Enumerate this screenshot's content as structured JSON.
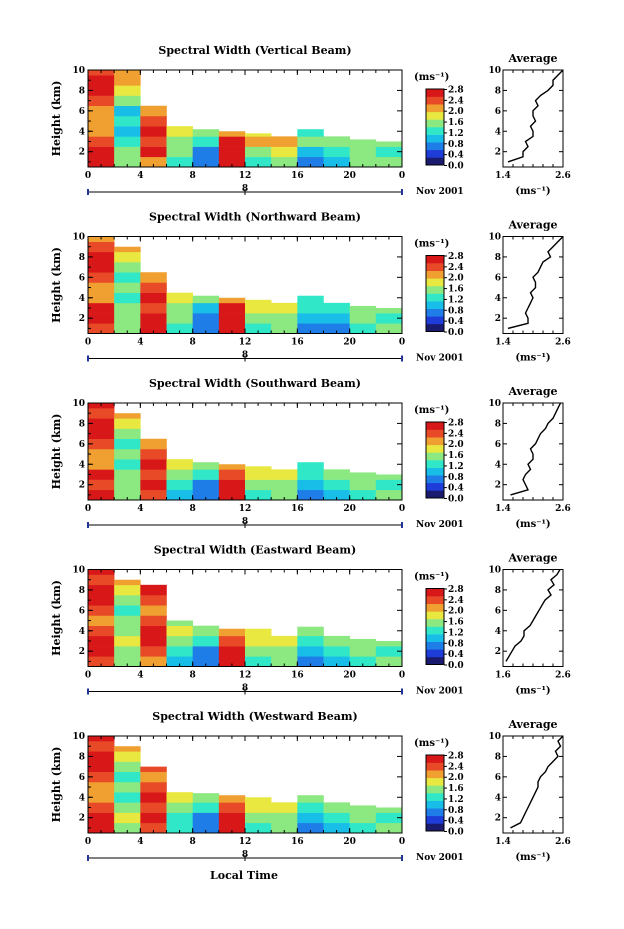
{
  "figure": {
    "xlabel": "Local Time",
    "xticks": [
      "0",
      "4",
      "8",
      "12",
      "16",
      "20",
      "0"
    ],
    "date_label": "Nov 2001",
    "day_marker": "8",
    "ylabel": "Height (km)",
    "yticks": [
      "2",
      "4",
      "6",
      "8",
      "10"
    ],
    "colorbar_unit": "(ms⁻¹)",
    "colorbar_ticks": [
      "0.0",
      "0.4",
      "0.8",
      "1.2",
      "1.6",
      "2.0",
      "2.4",
      "2.8"
    ],
    "colorbar_colors": [
      "#1a1a6e",
      "#1e3dd8",
      "#1f7de8",
      "#18bde8",
      "#30e8c8",
      "#8ce880",
      "#e8e840",
      "#f0a030",
      "#e84a28",
      "#d81818"
    ],
    "average_title": "Average",
    "average_xlabel": "(ms⁻¹)"
  },
  "panels": [
    {
      "title": "Spectral Width (Vertical Beam)",
      "avg_xticks": [
        "1.4",
        "2.6"
      ]
    },
    {
      "title": "Spectral Width (Northward Beam)",
      "avg_xticks": [
        "1.4",
        "2.6"
      ]
    },
    {
      "title": "Spectral Width (Southward Beam)",
      "avg_xticks": [
        "1.4",
        "2.6"
      ]
    },
    {
      "title": "Spectral Width (Eastward Beam)",
      "avg_xticks": [
        "1.6",
        "2.6"
      ]
    },
    {
      "title": "Spectral Width (Westward Beam)",
      "avg_xticks": [
        "1.4",
        "2.6"
      ]
    }
  ],
  "chart_data": [
    {
      "type": "heatmap",
      "title": "Spectral Width (Vertical Beam)",
      "xlabel": "Local Time",
      "ylabel": "Height (km)",
      "xlim": [
        0,
        24
      ],
      "ylim": [
        0.5,
        10
      ],
      "zlim": [
        0.0,
        2.8
      ],
      "zlabel": "(ms⁻¹)",
      "columns_hours": [
        0,
        2,
        4,
        6,
        8,
        10,
        12,
        14,
        16,
        18,
        20,
        22
      ],
      "rows_km": [
        1,
        2,
        3,
        4,
        5,
        6,
        7,
        8,
        9,
        10
      ],
      "top_km": [
        10,
        10,
        7,
        5,
        4.2,
        4,
        3.8,
        3.8,
        4.2,
        3.6,
        3.2,
        3
      ],
      "z": [
        [
          2.6,
          1.6,
          2.2,
          1.2,
          0.8,
          2.6,
          1.2,
          1.6,
          0.8,
          1.0,
          1.4,
          1.6
        ],
        [
          2.6,
          1.4,
          2.6,
          1.4,
          0.6,
          2.6,
          1.6,
          1.8,
          1.0,
          1.2,
          1.4,
          1.2
        ],
        [
          2.4,
          1.2,
          2.4,
          1.6,
          1.2,
          2.6,
          2.0,
          2.0,
          1.4,
          1.4,
          1.6,
          1.4
        ],
        [
          2.2,
          1.0,
          2.6,
          1.8,
          1.6,
          2.2,
          1.8,
          0,
          1.2,
          0,
          0,
          0
        ],
        [
          2.0,
          1.2,
          2.4,
          0,
          0,
          0,
          0,
          0,
          0,
          0,
          0,
          0
        ],
        [
          2.2,
          1.0,
          2.0,
          0,
          0,
          0,
          0,
          0,
          0,
          0,
          0,
          0
        ],
        [
          2.4,
          1.4,
          0,
          0,
          0,
          0,
          0,
          0,
          0,
          0,
          0,
          0
        ],
        [
          2.6,
          1.8,
          0,
          0,
          0,
          0,
          0,
          0,
          0,
          0,
          0,
          0
        ],
        [
          2.6,
          2.0,
          0,
          0,
          0,
          0,
          0,
          0,
          0,
          0,
          0,
          0
        ],
        [
          2.4,
          2.0,
          0,
          0,
          0,
          0,
          0,
          0,
          0,
          0,
          0,
          0
        ]
      ],
      "average": {
        "title": "Average",
        "xlim": [
          1.4,
          2.6
        ],
        "ylim": [
          0.5,
          10
        ],
        "xlabel": "(ms⁻¹)",
        "height_km": [
          1,
          1.5,
          2,
          2.5,
          3,
          3.5,
          4,
          4.5,
          5,
          5.5,
          6,
          6.5,
          7,
          7.5,
          8,
          8.5,
          9,
          9.5,
          10
        ],
        "value": [
          1.5,
          1.8,
          1.8,
          1.9,
          1.85,
          2.0,
          2.0,
          1.95,
          2.05,
          2.0,
          2.0,
          2.1,
          2.05,
          2.15,
          2.3,
          2.4,
          2.4,
          2.5,
          2.6
        ]
      }
    },
    {
      "type": "heatmap",
      "title": "Spectral Width (Northward Beam)",
      "xlabel": "Local Time",
      "ylabel": "Height (km)",
      "xlim": [
        0,
        24
      ],
      "ylim": [
        0.5,
        10
      ],
      "zlim": [
        0.0,
        2.8
      ],
      "zlabel": "(ms⁻¹)",
      "columns_hours": [
        0,
        2,
        4,
        6,
        8,
        10,
        12,
        14,
        16,
        18,
        20,
        22
      ],
      "rows_km": [
        1,
        2,
        3,
        4,
        5,
        6,
        7,
        8,
        9,
        10
      ],
      "top_km": [
        10,
        9,
        6.5,
        4.8,
        4.2,
        4,
        3.8,
        3.8,
        4.2,
        3.6,
        3.2,
        3
      ],
      "z": [
        [
          2.4,
          1.4,
          2.6,
          1.2,
          0.6,
          2.6,
          1.2,
          1.4,
          0.8,
          0.8,
          1.2,
          1.4
        ],
        [
          2.6,
          1.6,
          2.6,
          1.4,
          0.6,
          2.6,
          1.4,
          1.6,
          1.0,
          1.0,
          1.4,
          1.2
        ],
        [
          2.6,
          1.4,
          2.4,
          1.6,
          1.0,
          2.6,
          1.8,
          1.8,
          1.2,
          1.2,
          1.6,
          1.4
        ],
        [
          2.0,
          1.2,
          2.6,
          1.8,
          1.6,
          2.2,
          1.8,
          0,
          1.2,
          0,
          0,
          0
        ],
        [
          2.2,
          1.4,
          2.4,
          0,
          0,
          0,
          0,
          0,
          0,
          0,
          0,
          0
        ],
        [
          2.4,
          1.2,
          2.2,
          0,
          0,
          0,
          0,
          0,
          0,
          0,
          0,
          0
        ],
        [
          2.6,
          1.6,
          0,
          0,
          0,
          0,
          0,
          0,
          0,
          0,
          0,
          0
        ],
        [
          2.6,
          1.8,
          0,
          0,
          0,
          0,
          0,
          0,
          0,
          0,
          0,
          0
        ],
        [
          2.4,
          2.0,
          0,
          0,
          0,
          0,
          0,
          0,
          0,
          0,
          0,
          0
        ],
        [
          2.2,
          1.8,
          0,
          0,
          0,
          0,
          0,
          0,
          0,
          0,
          0,
          0
        ]
      ],
      "average": {
        "title": "Average",
        "xlim": [
          1.4,
          2.6
        ],
        "ylim": [
          0.5,
          10
        ],
        "xlabel": "(ms⁻¹)",
        "height_km": [
          1,
          1.5,
          2,
          2.5,
          3,
          3.5,
          4,
          4.5,
          5,
          5.5,
          6,
          6.5,
          7,
          7.5,
          8,
          8.5,
          9,
          9.5,
          10
        ],
        "value": [
          1.5,
          1.9,
          1.9,
          1.85,
          1.9,
          1.95,
          2.0,
          1.95,
          2.05,
          2.05,
          2.0,
          2.1,
          2.15,
          2.2,
          2.35,
          2.3,
          2.4,
          2.5,
          2.6
        ]
      }
    },
    {
      "type": "heatmap",
      "title": "Spectral Width (Southward Beam)",
      "xlabel": "Local Time",
      "ylabel": "Height (km)",
      "xlim": [
        0,
        24
      ],
      "ylim": [
        0.5,
        10
      ],
      "zlim": [
        0.0,
        2.8
      ],
      "zlabel": "(ms⁻¹)",
      "columns_hours": [
        0,
        2,
        4,
        6,
        8,
        10,
        12,
        14,
        16,
        18,
        20,
        22
      ],
      "rows_km": [
        1,
        2,
        3,
        4,
        5,
        6,
        7,
        8,
        9,
        10
      ],
      "top_km": [
        10,
        9,
        6.5,
        4.8,
        4.2,
        4,
        3.8,
        3.8,
        4.2,
        3.6,
        3.2,
        3
      ],
      "z": [
        [
          2.6,
          1.4,
          2.4,
          1.0,
          0.6,
          2.6,
          1.2,
          1.4,
          0.8,
          1.0,
          1.2,
          1.4
        ],
        [
          2.4,
          1.6,
          2.6,
          1.2,
          0.8,
          2.6,
          1.4,
          1.6,
          1.0,
          1.2,
          1.4,
          1.2
        ],
        [
          2.6,
          1.4,
          2.4,
          1.6,
          1.2,
          2.4,
          1.8,
          1.8,
          1.2,
          1.4,
          1.6,
          1.4
        ],
        [
          2.2,
          1.2,
          2.6,
          1.8,
          1.6,
          2.2,
          1.8,
          0,
          1.2,
          0,
          0,
          0
        ],
        [
          2.0,
          1.4,
          2.4,
          0,
          0,
          0,
          0,
          0,
          0,
          0,
          0,
          0
        ],
        [
          2.4,
          1.2,
          2.0,
          0,
          0,
          0,
          0,
          0,
          0,
          0,
          0,
          0
        ],
        [
          2.6,
          1.6,
          0,
          0,
          0,
          0,
          0,
          0,
          0,
          0,
          0,
          0
        ],
        [
          2.6,
          1.8,
          0,
          0,
          0,
          0,
          0,
          0,
          0,
          0,
          0,
          0
        ],
        [
          2.4,
          2.0,
          0,
          0,
          0,
          0,
          0,
          0,
          0,
          0,
          0,
          0
        ],
        [
          2.6,
          2.0,
          0,
          0,
          0,
          0,
          0,
          0,
          0,
          0,
          0,
          0
        ]
      ],
      "average": {
        "title": "Average",
        "xlim": [
          1.4,
          2.6
        ],
        "ylim": [
          0.5,
          10
        ],
        "xlabel": "(ms⁻¹)",
        "height_km": [
          1,
          1.5,
          2,
          2.5,
          3,
          3.5,
          4,
          4.5,
          5,
          5.5,
          6,
          6.5,
          7,
          7.5,
          8,
          8.5,
          9,
          9.5,
          10
        ],
        "value": [
          1.55,
          1.9,
          1.85,
          1.8,
          1.85,
          1.95,
          1.9,
          2.0,
          2.0,
          1.95,
          2.05,
          2.1,
          2.15,
          2.25,
          2.3,
          2.4,
          2.45,
          2.5,
          2.55
        ]
      }
    },
    {
      "type": "heatmap",
      "title": "Spectral Width (Eastward Beam)",
      "xlabel": "Local Time",
      "ylabel": "Height (km)",
      "xlim": [
        0,
        24
      ],
      "ylim": [
        0.5,
        10
      ],
      "zlim": [
        0.0,
        2.8
      ],
      "zlabel": "(ms⁻¹)",
      "columns_hours": [
        0,
        2,
        4,
        6,
        8,
        10,
        12,
        14,
        16,
        18,
        20,
        22
      ],
      "rows_km": [
        1,
        2,
        3,
        4,
        5,
        6,
        7,
        8,
        9,
        10
      ],
      "top_km": [
        10,
        9,
        9,
        5,
        4.8,
        4.2,
        4.2,
        3.8,
        4.4,
        3.6,
        3.2,
        3
      ],
      "z": [
        [
          2.4,
          1.4,
          2.2,
          1.0,
          0.6,
          2.6,
          1.2,
          1.4,
          0.8,
          1.0,
          1.2,
          1.4
        ],
        [
          2.6,
          1.6,
          2.4,
          1.2,
          0.8,
          2.6,
          1.4,
          1.6,
          1.0,
          1.2,
          1.4,
          1.2
        ],
        [
          2.6,
          1.8,
          2.6,
          1.6,
          1.2,
          2.4,
          1.8,
          1.8,
          1.2,
          1.4,
          1.6,
          1.4
        ],
        [
          2.4,
          1.6,
          2.6,
          1.8,
          1.6,
          2.2,
          1.8,
          0,
          1.4,
          0,
          0,
          0
        ],
        [
          2.2,
          1.4,
          2.4,
          1.6,
          0,
          0,
          0,
          0,
          0,
          0,
          0,
          0
        ],
        [
          2.4,
          1.2,
          2.2,
          0,
          0,
          0,
          0,
          0,
          0,
          0,
          0,
          0
        ],
        [
          2.6,
          1.6,
          2.4,
          0,
          0,
          0,
          0,
          0,
          0,
          0,
          0,
          0
        ],
        [
          2.6,
          1.8,
          2.6,
          0,
          0,
          0,
          0,
          0,
          0,
          0,
          0,
          0
        ],
        [
          2.4,
          2.0,
          0,
          0,
          0,
          0,
          0,
          0,
          0,
          0,
          0,
          0
        ],
        [
          2.6,
          2.2,
          0,
          0,
          0,
          0,
          0,
          0,
          0,
          0,
          0,
          0
        ]
      ],
      "average": {
        "title": "Average",
        "xlim": [
          1.6,
          2.6
        ],
        "ylim": [
          0.5,
          10
        ],
        "xlabel": "(ms⁻¹)",
        "height_km": [
          1,
          1.5,
          2,
          2.5,
          3,
          3.5,
          4,
          4.5,
          5,
          5.5,
          6,
          6.5,
          7,
          7.5,
          8,
          8.5,
          9,
          9.5,
          10
        ],
        "value": [
          1.65,
          1.7,
          1.75,
          1.8,
          1.9,
          1.95,
          1.95,
          2.05,
          2.1,
          2.15,
          2.2,
          2.25,
          2.3,
          2.4,
          2.35,
          2.45,
          2.4,
          2.5,
          2.55
        ]
      }
    },
    {
      "type": "heatmap",
      "title": "Spectral Width (Westward Beam)",
      "xlabel": "Local Time",
      "ylabel": "Height (km)",
      "xlim": [
        0,
        24
      ],
      "ylim": [
        0.5,
        10
      ],
      "zlim": [
        0.0,
        2.8
      ],
      "zlabel": "(ms⁻¹)",
      "columns_hours": [
        0,
        2,
        4,
        6,
        8,
        10,
        12,
        14,
        16,
        18,
        20,
        22
      ],
      "rows_km": [
        1,
        2,
        3,
        4,
        5,
        6,
        7,
        8,
        9,
        10
      ],
      "top_km": [
        10,
        9,
        7,
        5,
        4.4,
        4.2,
        4,
        3.8,
        4.2,
        3.8,
        3.2,
        3
      ],
      "z": [
        [
          2.6,
          1.6,
          2.4,
          1.2,
          0.6,
          2.6,
          1.2,
          1.6,
          0.8,
          1.0,
          1.2,
          1.6
        ],
        [
          2.6,
          1.8,
          2.6,
          1.2,
          0.8,
          2.6,
          1.4,
          1.6,
          1.0,
          1.2,
          1.4,
          1.2
        ],
        [
          2.4,
          1.6,
          2.4,
          1.6,
          1.2,
          2.4,
          1.8,
          1.8,
          1.2,
          1.4,
          1.6,
          1.4
        ],
        [
          2.2,
          1.2,
          2.6,
          1.8,
          1.6,
          2.2,
          1.8,
          0,
          1.4,
          0,
          0,
          0
        ],
        [
          2.0,
          1.4,
          2.4,
          0,
          0,
          0,
          0,
          0,
          0,
          0,
          0,
          0
        ],
        [
          2.4,
          1.2,
          2.2,
          0,
          0,
          0,
          0,
          0,
          0,
          0,
          0,
          0
        ],
        [
          2.6,
          1.6,
          2.4,
          0,
          0,
          0,
          0,
          0,
          0,
          0,
          0,
          0
        ],
        [
          2.6,
          1.8,
          0,
          0,
          0,
          0,
          0,
          0,
          0,
          0,
          0,
          0
        ],
        [
          2.4,
          2.0,
          0,
          0,
          0,
          0,
          0,
          0,
          0,
          0,
          0,
          0
        ],
        [
          2.6,
          2.2,
          0,
          0,
          0,
          0,
          0,
          0,
          0,
          0,
          0,
          0
        ]
      ],
      "average": {
        "title": "Average",
        "xlim": [
          1.4,
          2.6
        ],
        "ylim": [
          0.5,
          10
        ],
        "xlabel": "(ms⁻¹)",
        "height_km": [
          1,
          1.5,
          2,
          2.5,
          3,
          3.5,
          4,
          4.5,
          5,
          5.5,
          6,
          6.5,
          7,
          7.5,
          8,
          8.5,
          9,
          9.5,
          10
        ],
        "value": [
          1.55,
          1.75,
          1.8,
          1.85,
          1.9,
          1.95,
          2.0,
          2.05,
          2.1,
          2.1,
          2.15,
          2.25,
          2.3,
          2.4,
          2.5,
          2.45,
          2.55,
          2.5,
          2.6
        ]
      }
    }
  ]
}
